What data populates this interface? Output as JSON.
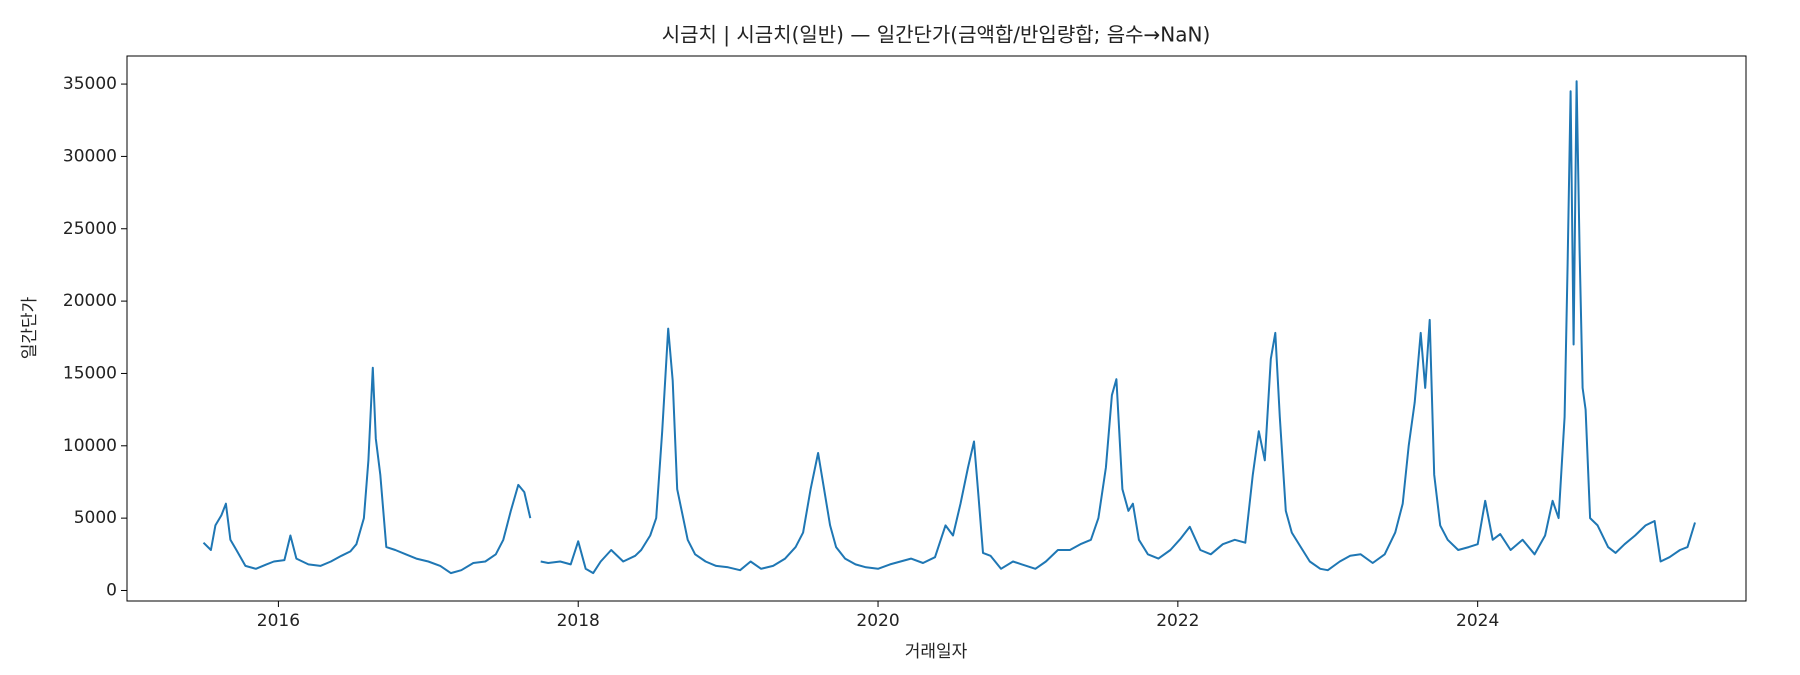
{
  "chart_data": {
    "type": "line",
    "title": "시금치 | 시금치(일반) — 일간단가(금액합/반입량합; 음수→NaN)",
    "x_label": "거래일자",
    "y_label": "일간단가",
    "color": "#1f77b4",
    "x": [
      2015.5,
      2015.55,
      2015.58,
      2015.62,
      2015.65,
      2015.68,
      2015.72,
      2015.78,
      2015.85,
      2015.92,
      2015.97,
      2016.04,
      2016.08,
      2016.12,
      2016.2,
      2016.28,
      2016.35,
      2016.42,
      2016.48,
      2016.52,
      2016.57,
      2016.6,
      2016.63,
      2016.65,
      2016.68,
      2016.72,
      2016.78,
      2016.85,
      2016.92,
      2017.0,
      2017.08,
      2017.15,
      2017.22,
      2017.3,
      2017.38,
      2017.45,
      2017.5,
      2017.55,
      2017.6,
      2017.64,
      2017.68,
      2017.7,
      2017.75,
      2017.8,
      2017.88,
      2017.95,
      2018.0,
      2018.05,
      2018.1,
      2018.15,
      2018.22,
      2018.3,
      2018.38,
      2018.42,
      2018.48,
      2018.52,
      2018.56,
      2018.6,
      2018.63,
      2018.66,
      2018.7,
      2018.73,
      2018.78,
      2018.85,
      2018.92,
      2019.0,
      2019.08,
      2019.15,
      2019.22,
      2019.3,
      2019.38,
      2019.45,
      2019.5,
      2019.55,
      2019.6,
      2019.64,
      2019.68,
      2019.72,
      2019.78,
      2019.85,
      2019.92,
      2020.0,
      2020.08,
      2020.15,
      2020.22,
      2020.3,
      2020.38,
      2020.45,
      2020.5,
      2020.55,
      2020.6,
      2020.64,
      2020.67,
      2020.7,
      2020.75,
      2020.82,
      2020.9,
      2020.96,
      2021.05,
      2021.12,
      2021.2,
      2021.28,
      2021.35,
      2021.42,
      2021.47,
      2021.52,
      2021.56,
      2021.59,
      2021.63,
      2021.67,
      2021.7,
      2021.74,
      2021.8,
      2021.87,
      2021.95,
      2022.02,
      2022.08,
      2022.15,
      2022.22,
      2022.3,
      2022.38,
      2022.45,
      2022.5,
      2022.54,
      2022.58,
      2022.62,
      2022.65,
      2022.68,
      2022.72,
      2022.76,
      2022.82,
      2022.88,
      2022.95,
      2023.0,
      2023.08,
      2023.15,
      2023.22,
      2023.3,
      2023.38,
      2023.45,
      2023.5,
      2023.54,
      2023.58,
      2023.62,
      2023.65,
      2023.68,
      2023.71,
      2023.75,
      2023.8,
      2023.87,
      2023.94,
      2024.0,
      2024.05,
      2024.1,
      2024.15,
      2024.22,
      2024.3,
      2024.38,
      2024.45,
      2024.5,
      2024.54,
      2024.58,
      2024.6,
      2024.62,
      2024.64,
      2024.66,
      2024.68,
      2024.7,
      2024.72,
      2024.75,
      2024.8,
      2024.87,
      2024.92,
      2024.98,
      2025.05,
      2025.12,
      2025.18,
      2025.22,
      2025.28,
      2025.35,
      2025.4,
      2025.45
    ],
    "values": [
      3300,
      2800,
      4500,
      5200,
      6000,
      3500,
      2800,
      1700,
      1500,
      1800,
      2000,
      2100,
      3800,
      2200,
      1800,
      1700,
      2000,
      2400,
      2700,
      3200,
      5000,
      9000,
      15400,
      10500,
      8000,
      3000,
      2800,
      2500,
      2200,
      2000,
      1700,
      1200,
      1400,
      1900,
      2000,
      2500,
      3500,
      5500,
      7300,
      6800,
      5000,
      null,
      2000,
      1900,
      2000,
      1800,
      3400,
      1500,
      1200,
      2000,
      2800,
      2000,
      2400,
      2800,
      3800,
      5000,
      11000,
      18100,
      14500,
      7000,
      5000,
      3500,
      2500,
      2000,
      1700,
      1600,
      1400,
      2000,
      1500,
      1700,
      2200,
      3000,
      4000,
      7000,
      9500,
      7000,
      4500,
      3000,
      2200,
      1800,
      1600,
      1500,
      1800,
      2000,
      2200,
      1900,
      2300,
      4500,
      3800,
      6000,
      8500,
      10300,
      6500,
      2600,
      2400,
      1500,
      2000,
      1800,
      1500,
      2000,
      2800,
      2800,
      3200,
      3500,
      5000,
      8500,
      13500,
      14600,
      7000,
      5500,
      6000,
      3500,
      2500,
      2200,
      2800,
      3600,
      4400,
      2800,
      2500,
      3200,
      3500,
      3300,
      8000,
      11000,
      9000,
      16000,
      17800,
      12000,
      5500,
      4000,
      3000,
      2000,
      1500,
      1400,
      2000,
      2400,
      2500,
      1900,
      2500,
      4000,
      6000,
      10000,
      13000,
      17800,
      14000,
      18700,
      8000,
      4500,
      3500,
      2800,
      3000,
      3200,
      6200,
      3500,
      3900,
      2800,
      3500,
      2500,
      3800,
      6200,
      5000,
      12000,
      22500,
      34500,
      17000,
      35200,
      23500,
      14000,
      12500,
      5000,
      4500,
      3000,
      2600,
      3200,
      3800,
      4500,
      4800,
      2000,
      2300,
      2800,
      3000,
      4700
    ],
    "xlim": [
      2014.99,
      2025.79
    ],
    "xticks": [
      2016,
      2018,
      2020,
      2022,
      2024
    ],
    "ylim": [
      -727,
      36940
    ],
    "yticks": [
      0,
      5000,
      10000,
      15000,
      20000,
      25000,
      30000,
      35000
    ]
  }
}
